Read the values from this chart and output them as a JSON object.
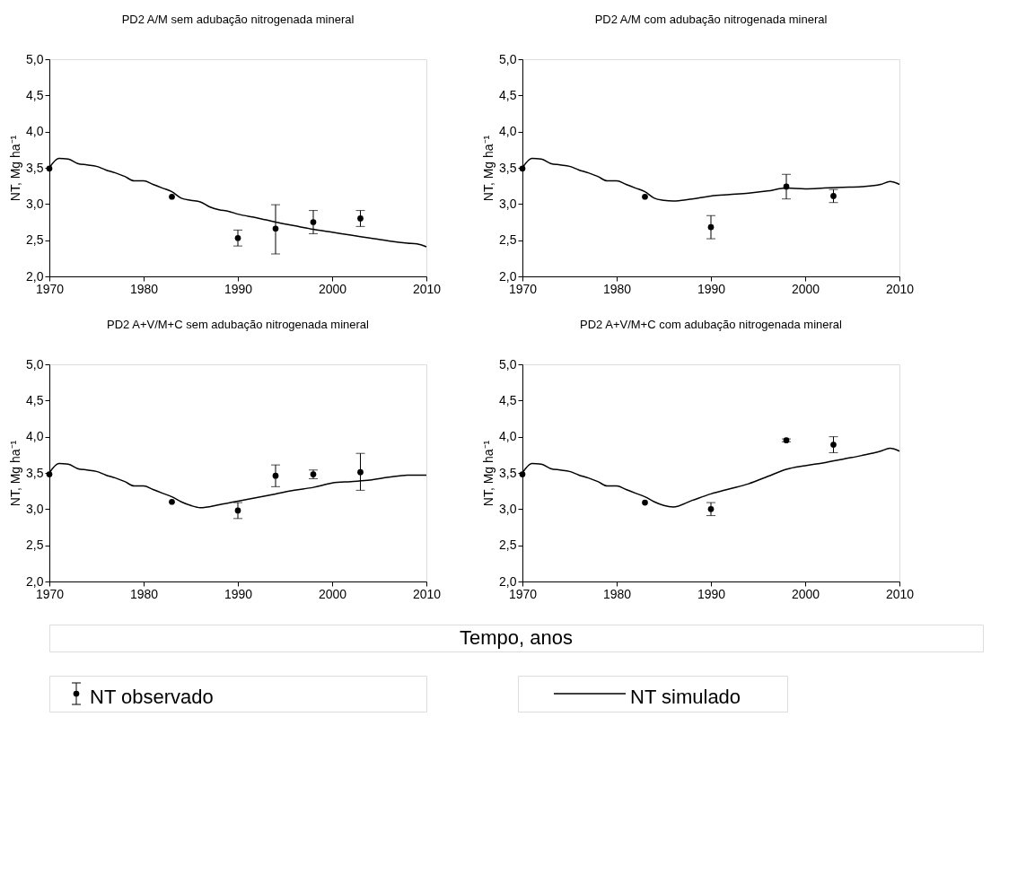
{
  "chart_data": [
    {
      "type": "line",
      "title": "PD2 A/M sem adubação nitrogenada mineral",
      "ylabel": "NT, Mg ha⁻¹",
      "xlim": [
        1970,
        2010
      ],
      "xticks": [
        1970,
        1980,
        1990,
        2000,
        2010
      ],
      "ylim": [
        2,
        5
      ],
      "yticks": [
        {
          "value": 2,
          "label": "2,0"
        },
        {
          "value": 2.5,
          "label": "2,5"
        },
        {
          "value": 3,
          "label": "3,0"
        },
        {
          "value": 3.5,
          "label": "3,5"
        },
        {
          "value": 4,
          "label": "4,0"
        },
        {
          "value": 4.5,
          "label": "4,5"
        },
        {
          "value": 5,
          "label": "5,0"
        }
      ],
      "grid": false,
      "legend": "bottom",
      "series": [
        {
          "name": "NT observado",
          "type": "scatter",
          "marker": "circle",
          "color": "#000000",
          "x": [
            1970,
            1983,
            1990,
            1994,
            1998,
            2003
          ],
          "values": [
            3.49,
            3.1,
            2.53,
            2.66,
            2.75,
            2.8
          ],
          "errors": [
            null,
            null,
            [
              2.42,
              2.64
            ],
            [
              2.31,
              2.99
            ],
            [
              2.59,
              2.91
            ],
            [
              2.69,
              2.91
            ]
          ]
        },
        {
          "name": "NT simulado",
          "color": "#000000",
          "x": [
            1970,
            1971,
            1972,
            1973,
            1974,
            1975,
            1976,
            1977,
            1978,
            1979,
            1980,
            1981,
            1982,
            1983,
            1984,
            1985,
            1986,
            1987,
            1988,
            1989,
            1990,
            1992,
            1994,
            1996,
            1998,
            2000,
            2002,
            2004,
            2006,
            2008,
            2009,
            2010
          ],
          "values": [
            3.5,
            3.63,
            3.62,
            3.56,
            3.54,
            3.52,
            3.47,
            3.43,
            3.38,
            3.32,
            3.32,
            3.27,
            3.22,
            3.17,
            3.08,
            3.05,
            3.03,
            2.96,
            2.92,
            2.9,
            2.86,
            2.81,
            2.75,
            2.7,
            2.65,
            2.61,
            2.57,
            2.53,
            2.49,
            2.46,
            2.45,
            2.41
          ]
        }
      ]
    },
    {
      "type": "line",
      "title": "PD2 A/M com adubação nitrogenada mineral",
      "ylabel": "NT, Mg ha⁻¹",
      "xlim": [
        1970,
        2010
      ],
      "xticks": [
        1970,
        1980,
        1990,
        2000,
        2010
      ],
      "ylim": [
        2,
        5
      ],
      "yticks": [
        {
          "value": 2,
          "label": "2,0"
        },
        {
          "value": 2.5,
          "label": "2,5"
        },
        {
          "value": 3,
          "label": "3,0"
        },
        {
          "value": 3.5,
          "label": "3,5"
        },
        {
          "value": 4,
          "label": "4,0"
        },
        {
          "value": 4.5,
          "label": "4,5"
        },
        {
          "value": 5,
          "label": "5,0"
        }
      ],
      "grid": false,
      "series": [
        {
          "type": "scatter",
          "marker": "circle",
          "color": "#000000",
          "x": [
            1970,
            1983,
            1990,
            1998,
            2003
          ],
          "values": [
            3.49,
            3.1,
            2.68,
            3.24,
            3.11
          ],
          "errors": [
            null,
            null,
            [
              2.52,
              2.84
            ],
            [
              3.07,
              3.41
            ],
            [
              3.02,
              3.2
            ]
          ]
        },
        {
          "color": "#000000",
          "x": [
            1970,
            1971,
            1972,
            1973,
            1974,
            1975,
            1976,
            1977,
            1978,
            1979,
            1980,
            1981,
            1982,
            1983,
            1984,
            1985,
            1986,
            1988,
            1990,
            1992,
            1994,
            1996,
            1998,
            2000,
            2002,
            2004,
            2006,
            2008,
            2009,
            2010
          ],
          "values": [
            3.5,
            3.63,
            3.62,
            3.56,
            3.54,
            3.52,
            3.47,
            3.43,
            3.38,
            3.32,
            3.32,
            3.27,
            3.22,
            3.17,
            3.08,
            3.05,
            3.04,
            3.07,
            3.11,
            3.13,
            3.15,
            3.18,
            3.22,
            3.21,
            3.22,
            3.23,
            3.24,
            3.27,
            3.31,
            3.27
          ]
        }
      ]
    },
    {
      "type": "line",
      "title": "PD2 A+V/M+C sem adubação nitrogenada mineral",
      "ylabel": "NT, Mg ha⁻¹",
      "xlabel": "Tempo, anos",
      "xlim": [
        1970,
        2010
      ],
      "xticks": [
        1970,
        1980,
        1990,
        2000,
        2010
      ],
      "ylim": [
        2,
        5
      ],
      "yticks": [
        {
          "value": 2,
          "label": "2,0"
        },
        {
          "value": 2.5,
          "label": "2,5"
        },
        {
          "value": 3,
          "label": "3,0"
        },
        {
          "value": 3.5,
          "label": "3,5"
        },
        {
          "value": 4,
          "label": "4,0"
        },
        {
          "value": 4.5,
          "label": "4,5"
        },
        {
          "value": 5,
          "label": "5,0"
        }
      ],
      "grid": false,
      "series": [
        {
          "type": "scatter",
          "marker": "circle",
          "color": "#000000",
          "x": [
            1970,
            1983,
            1990,
            1994,
            1998,
            2003
          ],
          "values": [
            3.48,
            3.1,
            2.98,
            3.46,
            3.48,
            3.51
          ],
          "errors": [
            null,
            null,
            [
              2.87,
              3.09
            ],
            [
              3.31,
              3.61
            ],
            [
              3.42,
              3.54
            ],
            [
              3.26,
              3.77
            ]
          ]
        },
        {
          "color": "#000000",
          "x": [
            1970,
            1971,
            1972,
            1973,
            1974,
            1975,
            1976,
            1977,
            1978,
            1979,
            1980,
            1981,
            1982,
            1983,
            1984,
            1985,
            1986,
            1988,
            1990,
            1992,
            1994,
            1996,
            1998,
            2000,
            2002,
            2004,
            2006,
            2008,
            2010
          ],
          "values": [
            3.5,
            3.63,
            3.62,
            3.56,
            3.54,
            3.52,
            3.47,
            3.43,
            3.38,
            3.32,
            3.32,
            3.27,
            3.22,
            3.17,
            3.1,
            3.05,
            3.02,
            3.06,
            3.11,
            3.16,
            3.21,
            3.26,
            3.3,
            3.36,
            3.38,
            3.4,
            3.44,
            3.47,
            3.47
          ]
        }
      ]
    },
    {
      "type": "line",
      "title": "PD2 A+V/M+C com adubação nitrogenada mineral",
      "ylabel": "NT, Mg ha⁻¹",
      "xlim": [
        1970,
        2010
      ],
      "xticks": [
        1970,
        1980,
        1990,
        2000,
        2010
      ],
      "ylim": [
        2,
        5
      ],
      "yticks": [
        {
          "value": 2,
          "label": "2,0"
        },
        {
          "value": 2.5,
          "label": "2,5"
        },
        {
          "value": 3,
          "label": "3,0"
        },
        {
          "value": 3.5,
          "label": "3,5"
        },
        {
          "value": 4,
          "label": "4,0"
        },
        {
          "value": 4.5,
          "label": "4,5"
        },
        {
          "value": 5,
          "label": "5,0"
        }
      ],
      "grid": false,
      "series": [
        {
          "type": "scatter",
          "marker": "circle",
          "color": "#000000",
          "x": [
            1970,
            1983,
            1990,
            1998,
            2003
          ],
          "values": [
            3.48,
            3.09,
            3.0,
            3.95,
            3.89
          ],
          "errors": [
            null,
            null,
            [
              2.91,
              3.09
            ],
            [
              3.93,
              3.97
            ],
            [
              3.78,
              4.0
            ]
          ]
        },
        {
          "color": "#000000",
          "x": [
            1970,
            1971,
            1972,
            1973,
            1974,
            1975,
            1976,
            1977,
            1978,
            1979,
            1980,
            1981,
            1982,
            1983,
            1984,
            1985,
            1986,
            1988,
            1990,
            1992,
            1994,
            1996,
            1998,
            2000,
            2002,
            2004,
            2006,
            2008,
            2009,
            2010
          ],
          "values": [
            3.5,
            3.63,
            3.62,
            3.56,
            3.54,
            3.52,
            3.47,
            3.43,
            3.38,
            3.32,
            3.32,
            3.27,
            3.22,
            3.17,
            3.1,
            3.05,
            3.03,
            3.12,
            3.21,
            3.28,
            3.35,
            3.45,
            3.55,
            3.6,
            3.64,
            3.69,
            3.74,
            3.8,
            3.84,
            3.8
          ]
        }
      ]
    }
  ]
}
